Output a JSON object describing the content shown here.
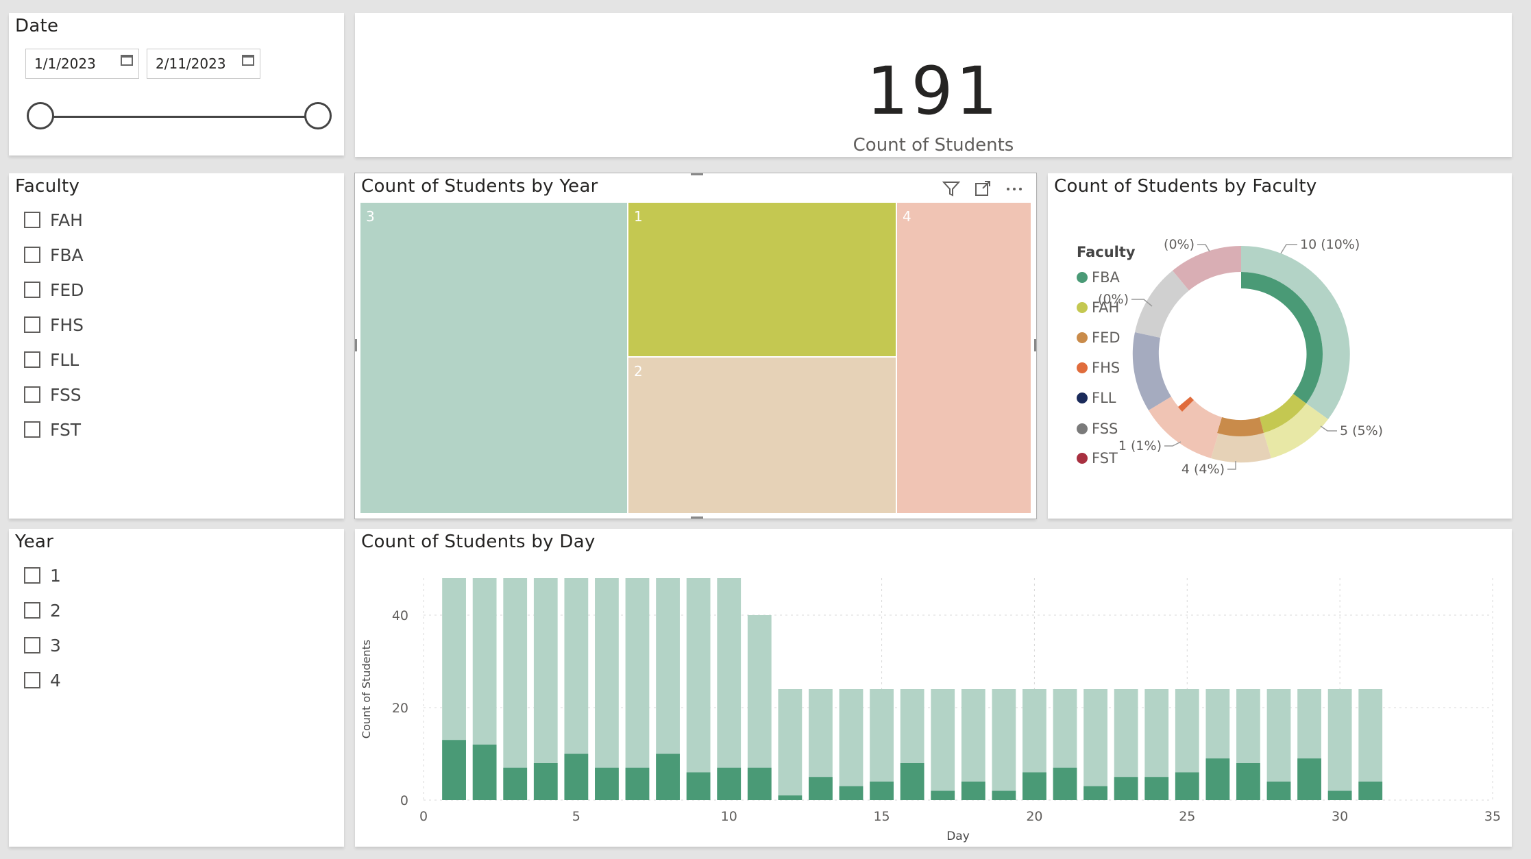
{
  "date_slicer": {
    "title": "Date",
    "start": "1/1/2023",
    "end": "2/11/2023"
  },
  "kpi": {
    "value": "191",
    "label": "Count of Students"
  },
  "faculty_slicer": {
    "title": "Faculty",
    "items": [
      "FAH",
      "FBA",
      "FED",
      "FHS",
      "FLL",
      "FSS",
      "FST"
    ]
  },
  "year_slicer": {
    "title": "Year",
    "items": [
      "1",
      "2",
      "3",
      "4"
    ]
  },
  "treemap": {
    "title": "Count of Students by Year",
    "cells": [
      {
        "label": "3",
        "color": "#b3d3c6"
      },
      {
        "label": "1",
        "color": "#c4c851"
      },
      {
        "label": "2",
        "color": "#e6d2b7"
      },
      {
        "label": "4",
        "color": "#f0c4b4"
      }
    ]
  },
  "donut": {
    "title": "Count of Students by Faculty",
    "legend_title": "Faculty",
    "legend": [
      {
        "name": "FBA",
        "color": "#4a9a76"
      },
      {
        "name": "FAH",
        "color": "#c4c851"
      },
      {
        "name": "FED",
        "color": "#c98b4a"
      },
      {
        "name": "FHS",
        "color": "#e06c3c"
      },
      {
        "name": "FLL",
        "color": "#1a2a5a"
      },
      {
        "name": "FSS",
        "color": "#7a7a7a"
      },
      {
        "name": "FST",
        "color": "#a83040"
      }
    ],
    "labels": [
      "10 (10%)",
      "5 (5%)",
      "4 (4%)",
      "1 (1%)",
      "(0%)",
      "(0%)"
    ]
  },
  "chart_data": {
    "type": "bar",
    "title": "Count of Students by Day",
    "xlabel": "Day",
    "ylabel": "Count of Students",
    "xlim": [
      0,
      35
    ],
    "ylim": [
      0,
      48
    ],
    "xticks": [
      0,
      5,
      10,
      15,
      20,
      25,
      30,
      35
    ],
    "yticks": [
      0,
      20,
      40
    ],
    "x": [
      1,
      2,
      3,
      4,
      5,
      6,
      7,
      8,
      9,
      10,
      11,
      12,
      13,
      14,
      15,
      16,
      17,
      18,
      19,
      20,
      21,
      22,
      23,
      24,
      25,
      26,
      27,
      28,
      29,
      30,
      31
    ],
    "series": [
      {
        "values": [
          48,
          48,
          48,
          48,
          48,
          48,
          48,
          48,
          48,
          48,
          40,
          24,
          24,
          24,
          24,
          24,
          24,
          24,
          24,
          24,
          24,
          24,
          24,
          24,
          24,
          24,
          24,
          24,
          24,
          24,
          24
        ],
        "color": "#b3d3c6"
      },
      {
        "values": [
          13,
          12,
          7,
          8,
          10,
          7,
          7,
          10,
          6,
          7,
          7,
          1,
          5,
          3,
          4,
          8,
          2,
          4,
          2,
          6,
          7,
          3,
          5,
          5,
          6,
          9,
          8,
          4,
          9,
          2,
          4
        ],
        "color": "#4a9a76"
      }
    ]
  }
}
